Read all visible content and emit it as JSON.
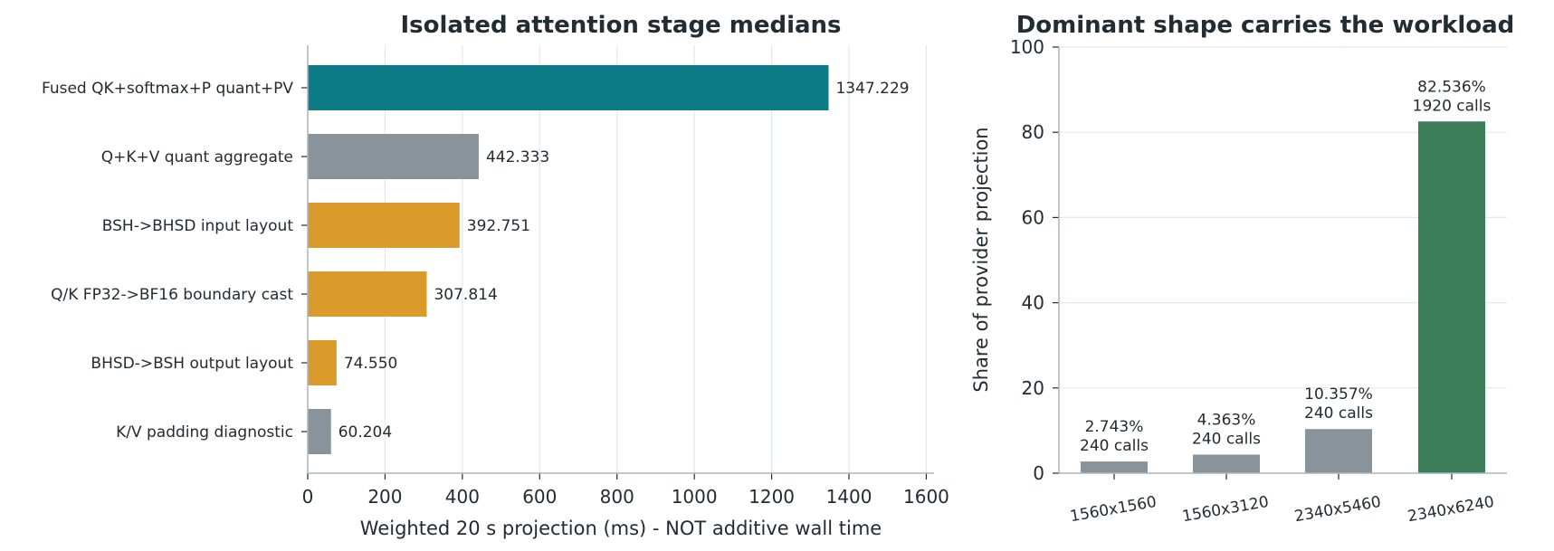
{
  "chart_data": [
    {
      "type": "bar",
      "orientation": "horizontal",
      "title": "Isolated attention stage medians",
      "xlabel": "Weighted 20 s projection (ms) - NOT additive wall time",
      "ylabel": "",
      "xlim": [
        0,
        1620
      ],
      "xticks": [
        0,
        200,
        400,
        600,
        800,
        1000,
        1200,
        1400,
        1600
      ],
      "grid": "vertical",
      "categories": [
        "Fused QK+softmax+P quant+PV",
        "Q+K+V quant aggregate",
        "BSH->BHSD input layout",
        "Q/K FP32->BF16 boundary cast",
        "BHSD->BSH output layout",
        "K/V padding diagnostic"
      ],
      "values": [
        1347.229,
        442.333,
        392.751,
        307.814,
        74.55,
        60.204
      ],
      "value_labels": [
        "1347.229",
        "442.333",
        "392.751",
        "307.814",
        "74.550",
        "60.204"
      ],
      "colors": [
        "#0e7c86",
        "#89939c",
        "#db9b2c",
        "#db9b2c",
        "#db9b2c",
        "#89939c"
      ]
    },
    {
      "type": "bar",
      "title": "Dominant shape carries the workload",
      "xlabel": "",
      "ylabel": "Share of provider projection",
      "ylim": [
        0,
        100
      ],
      "yticks": [
        0,
        20,
        40,
        60,
        80,
        100
      ],
      "grid": "horizontal",
      "categories": [
        "1560x1560",
        "1560x3120",
        "2340x5460",
        "2340x6240"
      ],
      "values": [
        2.743,
        4.363,
        10.357,
        82.536
      ],
      "value_labels": [
        "2.743%",
        "4.363%",
        "10.357%",
        "82.536%"
      ],
      "call_labels": [
        "240 calls",
        "240 calls",
        "240 calls",
        "1920 calls"
      ],
      "colors": [
        "#89939c",
        "#89939c",
        "#89939c",
        "#3a7d57"
      ]
    }
  ]
}
